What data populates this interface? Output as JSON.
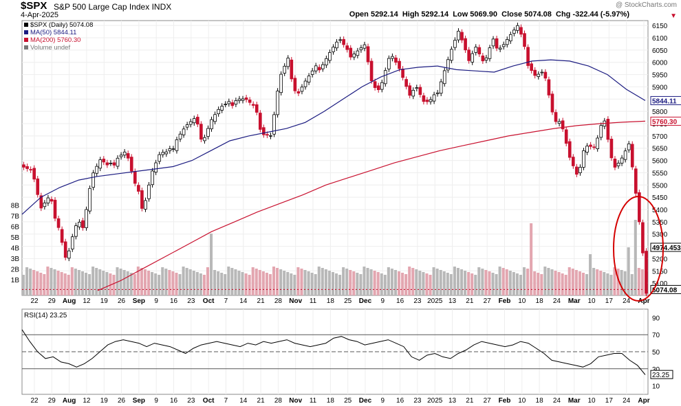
{
  "header": {
    "symbol": "$SPX",
    "name": "S&P 500 Large Cap Index",
    "exchange": "INDX",
    "date": "4-Apr-2025",
    "ohlc_text": "Open 5292.14  High 5292.14  Low 5069.90  Close 5074.08  Chg -322.44 (-5.97%)",
    "watermark": "@ StockCharts.com"
  },
  "colors": {
    "up": "#000000",
    "down": "#c8102e",
    "ma50": "#1a1a80",
    "ma200": "#c8102e",
    "vol_up": "#b8b8b8",
    "vol_down": "#e3a6b0",
    "annotation": "#d40000"
  },
  "chart_data": [
    {
      "type": "candlestick",
      "title": "$SPX (Daily) 5074.08",
      "legend": [
        {
          "label": "$SPX (Daily) 5074.08"
        },
        {
          "label": "MA(50) 5844.11"
        },
        {
          "label": "MA(200) 5760.30"
        },
        {
          "label": "Volume undef"
        }
      ],
      "y_ticks": [
        5100,
        5150,
        5200,
        5250,
        5300,
        5350,
        5400,
        5450,
        5500,
        5550,
        5600,
        5650,
        5700,
        5750,
        5800,
        5850,
        5900,
        5950,
        6000,
        6050,
        6100,
        6150
      ],
      "ylim": [
        5050,
        6170
      ],
      "volume_ticks": [
        "1B",
        "2B",
        "3B",
        "4B",
        "5B",
        "6B",
        "7B",
        "8B"
      ],
      "right_labels": {
        "ma50": "5844.11",
        "ma200": "5760.30",
        "partial": "4974.453",
        "close": "5074.08"
      },
      "x_ticks": [
        "22",
        "29",
        "Aug",
        "12",
        "19",
        "26",
        "Sep",
        "9",
        "16",
        "23",
        "Oct",
        "7",
        "14",
        "21",
        "28",
        "Nov",
        "11",
        "18",
        "25",
        "Dec",
        "9",
        "16",
        "23",
        "2025",
        "13",
        "21",
        "27",
        "Feb",
        "10",
        "18",
        "24",
        "Mar",
        "10",
        "17",
        "24",
        "Apr"
      ],
      "close_path": [
        [
          "Jul 17",
          5590
        ],
        [
          "Jul 22",
          5565
        ],
        [
          "Jul 25",
          5400
        ],
        [
          "Jul 30",
          5440
        ],
        [
          "Aug 2",
          5350
        ],
        [
          "Aug 5",
          5190
        ],
        [
          "Aug 8",
          5320
        ],
        [
          "Aug 12",
          5345
        ],
        [
          "Aug 15",
          5545
        ],
        [
          "Aug 19",
          5600
        ],
        [
          "Aug 22",
          5560
        ],
        [
          "Aug 26",
          5620
        ],
        [
          "Aug 29",
          5640
        ],
        [
          "Sep 3",
          5500
        ],
        [
          "Sep 6",
          5410
        ],
        [
          "Sep 10",
          5555
        ],
        [
          "Sep 13",
          5626
        ],
        [
          "Sep 18",
          5620
        ],
        [
          "Sep 20",
          5700
        ],
        [
          "Sep 25",
          5740
        ],
        [
          "Sep 30",
          5760
        ],
        [
          "Oct 3",
          5690
        ],
        [
          "Oct 8",
          5770
        ],
        [
          "Oct 11",
          5810
        ],
        [
          "Oct 15",
          5820
        ],
        [
          "Oct 18",
          5860
        ],
        [
          "Oct 22",
          5850
        ],
        [
          "Oct 25",
          5810
        ],
        [
          "Oct 31",
          5720
        ],
        [
          "Nov 4",
          5705
        ],
        [
          "Nov 6",
          5930
        ],
        [
          "Nov 11",
          6000
        ],
        [
          "Nov 15",
          5870
        ],
        [
          "Nov 20",
          5920
        ],
        [
          "Nov 22",
          5960
        ],
        [
          "Nov 27",
          6000
        ],
        [
          "Dec 2",
          6050
        ],
        [
          "Dec 6",
          6090
        ],
        [
          "Dec 10",
          6030
        ],
        [
          "Dec 13",
          6050
        ],
        [
          "Dec 16",
          6070
        ],
        [
          "Dec 18",
          5870
        ],
        [
          "Dec 20",
          5930
        ],
        [
          "Dec 24",
          6040
        ],
        [
          "Dec 27",
          5970
        ],
        [
          "Jan 2",
          5870
        ],
        [
          "Jan 7",
          5910
        ],
        [
          "Jan 10",
          5830
        ],
        [
          "Jan 13",
          5840
        ],
        [
          "Jan 16",
          5940
        ],
        [
          "Jan 21",
          6040
        ],
        [
          "Jan 23",
          6120
        ],
        [
          "Jan 27",
          6010
        ],
        [
          "Jan 30",
          6070
        ],
        [
          "Feb 3",
          5990
        ],
        [
          "Feb 6",
          6080
        ],
        [
          "Feb 10",
          6070
        ],
        [
          "Feb 14",
          6110
        ],
        [
          "Feb 19",
          6144
        ],
        [
          "Feb 21",
          6010
        ],
        [
          "Feb 25",
          5950
        ],
        [
          "Feb 28",
          5960
        ],
        [
          "Mar 4",
          5780
        ],
        [
          "Mar 7",
          5770
        ],
        [
          "Mar 10",
          5615
        ],
        [
          "Mar 13",
          5520
        ],
        [
          "Mar 17",
          5675
        ],
        [
          "Mar 20",
          5660
        ],
        [
          "Mar 25",
          5775
        ],
        [
          "Mar 28",
          5580
        ],
        [
          "Mar 31",
          5610
        ],
        [
          "Apr 2",
          5670
        ],
        [
          "Apr 3",
          5396
        ],
        [
          "Apr 4",
          5074
        ]
      ],
      "ma50_path": [
        5380,
        5450,
        5490,
        5520,
        5535,
        5545,
        5555,
        5565,
        5575,
        5600,
        5640,
        5680,
        5700,
        5715,
        5730,
        5755,
        5800,
        5850,
        5900,
        5940,
        5970,
        5980,
        5985,
        5970,
        5965,
        5960,
        5985,
        6005,
        6010,
        6005,
        5985,
        5950,
        5890,
        5844
      ],
      "ma200_path": [
        5070,
        5110,
        5160,
        5210,
        5260,
        5310,
        5350,
        5390,
        5425,
        5460,
        5500,
        5530,
        5560,
        5590,
        5615,
        5640,
        5660,
        5680,
        5700,
        5715,
        5730,
        5742,
        5750,
        5756,
        5760
      ]
    },
    {
      "type": "line",
      "title": "RSI(14) 23.25",
      "y_ticks": [
        10,
        30,
        50,
        70,
        90
      ],
      "ylim": [
        0,
        100
      ],
      "reference_lines": [
        30,
        50,
        70
      ],
      "last_value_label": "23.25",
      "x_ticks": [
        "22",
        "29",
        "Aug",
        "12",
        "19",
        "26",
        "Sep",
        "9",
        "16",
        "23",
        "Oct",
        "7",
        "14",
        "21",
        "28",
        "Nov",
        "11",
        "18",
        "25",
        "Dec",
        "9",
        "16",
        "23",
        "2025",
        "13",
        "21",
        "27",
        "Feb",
        "10",
        "18",
        "24",
        "Mar",
        "10",
        "17",
        "24",
        "Apr"
      ],
      "values": [
        76,
        62,
        50,
        42,
        44,
        38,
        36,
        32,
        36,
        42,
        50,
        58,
        62,
        64,
        62,
        60,
        56,
        60,
        58,
        56,
        52,
        48,
        54,
        58,
        60,
        62,
        60,
        58,
        56,
        60,
        58,
        62,
        60,
        62,
        64,
        60,
        58,
        56,
        58,
        60,
        66,
        68,
        64,
        62,
        58,
        60,
        62,
        64,
        60,
        56,
        44,
        40,
        46,
        48,
        44,
        42,
        48,
        52,
        58,
        62,
        60,
        58,
        56,
        58,
        62,
        60,
        54,
        48,
        40,
        38,
        36,
        34,
        32,
        36,
        44,
        46,
        48,
        48,
        40,
        34,
        23
      ]
    }
  ]
}
